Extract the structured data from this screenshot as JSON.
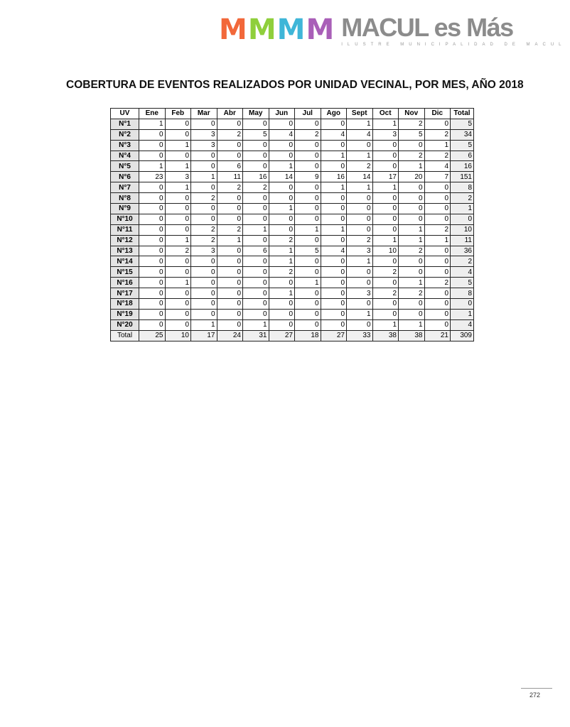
{
  "header": {
    "logo_letters": "MMMM",
    "brand_name": "MACUL es Más",
    "brand_subtitle": "ILUSTRE MUNICIPALIDAD DE MACUL",
    "logo_colors": [
      "#f2683a",
      "#8fcf3c",
      "#3fb6d8",
      "#a95fb8"
    ]
  },
  "title": "COBERTURA DE EVENTOS REALIZADOS POR UNIDAD VECINAL, POR MES, AÑO 2018",
  "table": {
    "columns": [
      "UV",
      "Ene",
      "Feb",
      "Mar",
      "Abr",
      "May",
      "Jun",
      "Jul",
      "Ago",
      "Sept",
      "Oct",
      "Nov",
      "Dic",
      "Total"
    ],
    "rows": [
      [
        "N°1",
        "1",
        "0",
        "0",
        "0",
        "0",
        "0",
        "0",
        "0",
        "1",
        "1",
        "2",
        "0",
        "5"
      ],
      [
        "N°2",
        "0",
        "0",
        "3",
        "2",
        "5",
        "4",
        "2",
        "4",
        "4",
        "3",
        "5",
        "2",
        "34"
      ],
      [
        "N°3",
        "0",
        "1",
        "3",
        "0",
        "0",
        "0",
        "0",
        "0",
        "0",
        "0",
        "0",
        "1",
        "5"
      ],
      [
        "N°4",
        "0",
        "0",
        "0",
        "0",
        "0",
        "0",
        "0",
        "1",
        "1",
        "0",
        "2",
        "2",
        "6"
      ],
      [
        "N°5",
        "1",
        "1",
        "0",
        "6",
        "0",
        "1",
        "0",
        "0",
        "2",
        "0",
        "1",
        "4",
        "16"
      ],
      [
        "N°6",
        "23",
        "3",
        "1",
        "11",
        "16",
        "14",
        "9",
        "16",
        "14",
        "17",
        "20",
        "7",
        "151"
      ],
      [
        "N°7",
        "0",
        "1",
        "0",
        "2",
        "2",
        "0",
        "0",
        "1",
        "1",
        "1",
        "0",
        "0",
        "8"
      ],
      [
        "N°8",
        "0",
        "0",
        "2",
        "0",
        "0",
        "0",
        "0",
        "0",
        "0",
        "0",
        "0",
        "0",
        "2"
      ],
      [
        "N°9",
        "0",
        "0",
        "0",
        "0",
        "0",
        "1",
        "0",
        "0",
        "0",
        "0",
        "0",
        "0",
        "1"
      ],
      [
        "N°10",
        "0",
        "0",
        "0",
        "0",
        "0",
        "0",
        "0",
        "0",
        "0",
        "0",
        "0",
        "0",
        "0"
      ],
      [
        "N°11",
        "0",
        "0",
        "2",
        "2",
        "1",
        "0",
        "1",
        "1",
        "0",
        "0",
        "1",
        "2",
        "10"
      ],
      [
        "N°12",
        "0",
        "1",
        "2",
        "1",
        "0",
        "2",
        "0",
        "0",
        "2",
        "1",
        "1",
        "1",
        "11"
      ],
      [
        "N°13",
        "0",
        "2",
        "3",
        "0",
        "6",
        "1",
        "5",
        "4",
        "3",
        "10",
        "2",
        "0",
        "36"
      ],
      [
        "N°14",
        "0",
        "0",
        "0",
        "0",
        "0",
        "1",
        "0",
        "0",
        "1",
        "0",
        "0",
        "0",
        "2"
      ],
      [
        "N°15",
        "0",
        "0",
        "0",
        "0",
        "0",
        "2",
        "0",
        "0",
        "0",
        "2",
        "0",
        "0",
        "4"
      ],
      [
        "N°16",
        "0",
        "1",
        "0",
        "0",
        "0",
        "0",
        "1",
        "0",
        "0",
        "0",
        "1",
        "2",
        "5"
      ],
      [
        "N°17",
        "0",
        "0",
        "0",
        "0",
        "0",
        "1",
        "0",
        "0",
        "3",
        "2",
        "2",
        "0",
        "8"
      ],
      [
        "N°18",
        "0",
        "0",
        "0",
        "0",
        "0",
        "0",
        "0",
        "0",
        "0",
        "0",
        "0",
        "0",
        "0"
      ],
      [
        "N°19",
        "0",
        "0",
        "0",
        "0",
        "0",
        "0",
        "0",
        "0",
        "1",
        "0",
        "0",
        "0",
        "1"
      ],
      [
        "N°20",
        "0",
        "0",
        "1",
        "0",
        "1",
        "0",
        "0",
        "0",
        "0",
        "1",
        "1",
        "0",
        "4"
      ]
    ],
    "total_row": [
      "Total",
      "25",
      "10",
      "17",
      "24",
      "31",
      "27",
      "18",
      "27",
      "33",
      "38",
      "38",
      "21",
      "309"
    ]
  },
  "page_number": "272"
}
